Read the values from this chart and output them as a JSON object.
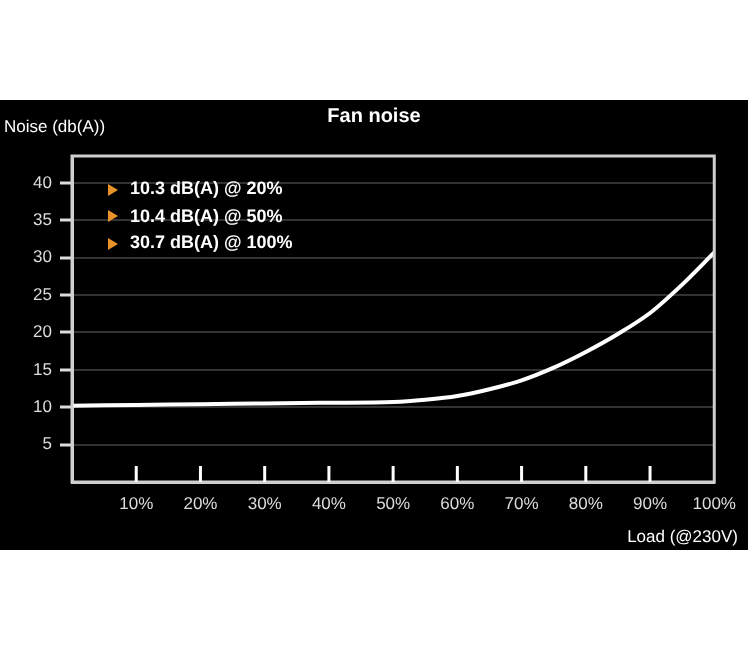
{
  "chart_data": {
    "type": "line",
    "title": "Fan noise",
    "ylabel": "Noise (db(A))",
    "xlabel": "Load (@230V)",
    "x": [
      0,
      10,
      20,
      30,
      40,
      50,
      55,
      60,
      65,
      70,
      75,
      80,
      85,
      90,
      95,
      100
    ],
    "series": [
      {
        "color": "#ffffff",
        "values": [
          10.2,
          10.3,
          10.4,
          10.5,
          10.6,
          10.7,
          11.0,
          11.5,
          12.4,
          13.6,
          15.3,
          17.4,
          19.8,
          22.6,
          26.4,
          30.7
        ]
      }
    ],
    "xlim": [
      0,
      100
    ],
    "xticks": [
      {
        "value": 10,
        "label": "10%"
      },
      {
        "value": 20,
        "label": "20%"
      },
      {
        "value": 30,
        "label": "30%"
      },
      {
        "value": 40,
        "label": "40%"
      },
      {
        "value": 50,
        "label": "50%"
      },
      {
        "value": 60,
        "label": "60%"
      },
      {
        "value": 70,
        "label": "70%"
      },
      {
        "value": 80,
        "label": "80%"
      },
      {
        "value": 90,
        "label": "90%"
      },
      {
        "value": 100,
        "label": "100%"
      }
    ],
    "ylim": [
      0,
      43.6
    ],
    "yticks": [
      5,
      10,
      15,
      20,
      25,
      30,
      35,
      40
    ],
    "grid": "y",
    "legend": false,
    "marker": "none",
    "annotations": [
      "10.3 dB(A) @ 20%",
      "10.4 dB(A) @ 50%",
      "30.7 dB(A) @ 100%"
    ]
  }
}
